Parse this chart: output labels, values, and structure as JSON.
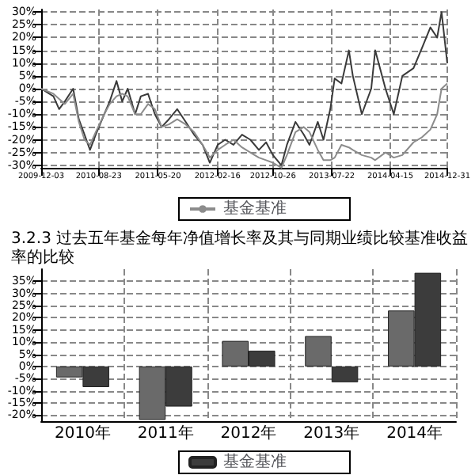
{
  "chart_data": [
    {
      "type": "line",
      "x": [
        "2009-12-03",
        "2010-01-28",
        "2010-02-23",
        "2010-03-21",
        "2010-04-28",
        "2010-05-24",
        "2010-06-19",
        "2010-07-14",
        "2010-08-09",
        "2010-09-17",
        "2010-10-12",
        "2010-11-12",
        "2010-12-08",
        "2011-01-02",
        "2011-02-05",
        "2011-03-03",
        "2011-04-05",
        "2011-05-06",
        "2011-06-06",
        "2011-07-09",
        "2011-08-16",
        "2011-09-24",
        "2011-11-01",
        "2011-12-10",
        "2012-01-12",
        "2012-02-17",
        "2012-03-22",
        "2012-04-29",
        "2012-06-07",
        "2012-07-15",
        "2012-08-23",
        "2012-09-25",
        "2012-10-26",
        "2012-12-04",
        "2012-12-29",
        "2013-02-06",
        "2013-03-16",
        "2013-04-11",
        "2013-05-19",
        "2013-06-14",
        "2013-07-15",
        "2013-08-04",
        "2013-09-04",
        "2013-10-08",
        "2013-10-26",
        "2013-12-06",
        "2014-01-18",
        "2014-02-05",
        "2014-03-24",
        "2014-05-01",
        "2014-06-09",
        "2014-07-30",
        "2014-09-07",
        "2014-10-15",
        "2014-11-15",
        "2014-12-05",
        "2014-12-18",
        "2014-12-31"
      ],
      "series": [
        {
          "color": "#3a3a3a",
          "values": [
            0,
            -3,
            -8,
            -5,
            0,
            -12,
            -18,
            -24,
            -18,
            -10,
            -5,
            3,
            -5,
            0,
            -10,
            -3,
            -2,
            -10,
            -15,
            -12,
            -8,
            -13,
            -18,
            -22,
            -29,
            -22,
            -20,
            -22,
            -18,
            -20,
            -24,
            -21,
            -26,
            -30,
            -22,
            -13,
            -18,
            -22,
            -13,
            -20,
            -8,
            4,
            2,
            15,
            5,
            -10,
            0,
            15,
            0,
            -10,
            5,
            8,
            16,
            24,
            20,
            30,
            20,
            10
          ]
        },
        {
          "name": "基金基准",
          "color": "#8c8c8c",
          "values": [
            0,
            -2,
            -4,
            -6,
            -2,
            -13,
            -20,
            -22,
            -17,
            -10,
            -6,
            -3,
            -2,
            -3,
            -10,
            -10,
            -6,
            -8,
            -15,
            -14,
            -12,
            -14,
            -17,
            -22,
            -27,
            -24,
            -22,
            -20,
            -23,
            -25,
            -27,
            -28,
            -29,
            -31,
            -26,
            -17,
            -15,
            -17,
            -24,
            -28,
            -28,
            -27,
            -22,
            -23,
            -24,
            -26,
            -27,
            -28,
            -25,
            -27,
            -26,
            -21,
            -19,
            -16,
            -10,
            0,
            1,
            2
          ]
        }
      ],
      "xlim": [
        "2009-12-03",
        "2014-12-31"
      ],
      "xticks": [
        "2009-12-03",
        "2010-08-23",
        "2011-05-20",
        "2012-02-16",
        "2012-10-26",
        "2013-07-22",
        "2014-04-15",
        "2014-12-31"
      ],
      "ylim": [
        -31,
        31
      ],
      "yticks": [
        {
          "value": -30,
          "label": "-30%"
        },
        {
          "value": -25,
          "label": "-25%"
        },
        {
          "value": -20,
          "label": "-20%"
        },
        {
          "value": -15,
          "label": "-15%"
        },
        {
          "value": -10,
          "label": "-10%"
        },
        {
          "value": -5,
          "label": "-5%"
        },
        {
          "value": 0,
          "label": "0%"
        },
        {
          "value": 5,
          "label": "5%"
        },
        {
          "value": 10,
          "label": "10%"
        },
        {
          "value": 15,
          "label": "15%"
        },
        {
          "value": 20,
          "label": "20%"
        },
        {
          "value": 25,
          "label": "25%"
        },
        {
          "value": 30,
          "label": "30%"
        }
      ],
      "grid": true,
      "legend": "bottom",
      "marker": "none",
      "line_style": "solid"
    },
    {
      "type": "bar",
      "title": "3.2.3 过去五年基金每年净值增长率及其与同期业绩比较基准收益率的比较",
      "categories": [
        "2010年",
        "2011年",
        "2012年",
        "2013年",
        "2014年"
      ],
      "series": [
        {
          "color": "#6a6a6a",
          "values": [
            -4.5,
            -22,
            10.5,
            12.5,
            23
          ]
        },
        {
          "name": "基金基准",
          "color": "#3c3c3c",
          "values": [
            -8.5,
            -16.5,
            6.5,
            -6.5,
            38.5
          ]
        }
      ],
      "ylim": [
        -22.5,
        40
      ],
      "yticks": [
        {
          "value": -20,
          "label": "-20%"
        },
        {
          "value": -15,
          "label": "-15%"
        },
        {
          "value": -10,
          "label": "-10%"
        },
        {
          "value": -5,
          "label": "-5%"
        },
        {
          "value": 0,
          "label": "0%"
        },
        {
          "value": 5,
          "label": "5%"
        },
        {
          "value": 10,
          "label": "10%"
        },
        {
          "value": 15,
          "label": "15%"
        },
        {
          "value": 20,
          "label": "20%"
        },
        {
          "value": 25,
          "label": "25%"
        },
        {
          "value": 30,
          "label": "30%"
        },
        {
          "value": 35,
          "label": "35%"
        }
      ],
      "grid": true,
      "legend": "bottom"
    }
  ]
}
